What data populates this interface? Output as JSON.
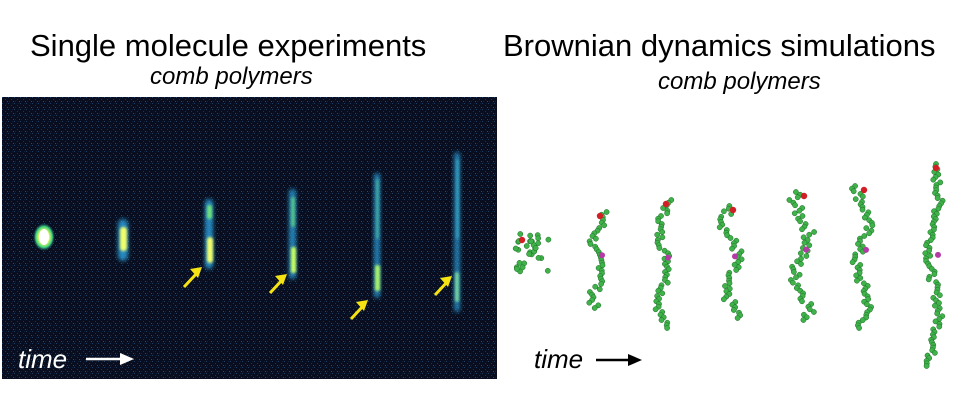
{
  "left_panel": {
    "title": "Single molecule experiments",
    "subtitle": "comb polymers",
    "time_label": "time"
  },
  "right_panel": {
    "title": "Brownian dynamics simulations",
    "subtitle": "comb polymers",
    "time_label": "time"
  },
  "colors": {
    "micrograph_background": "#080e1f",
    "fluorescence": "#2fa9e8",
    "fluorescence_bright": "#f2ff6a",
    "arrow_yellow": "#f5e313",
    "polymer_bead": "#3fb34a",
    "end_bead": "#d21f26",
    "marker_bead": "#b43aa6"
  },
  "icons": [
    "right-arrow-icon",
    "yellow-pointer-arrow-icon"
  ]
}
